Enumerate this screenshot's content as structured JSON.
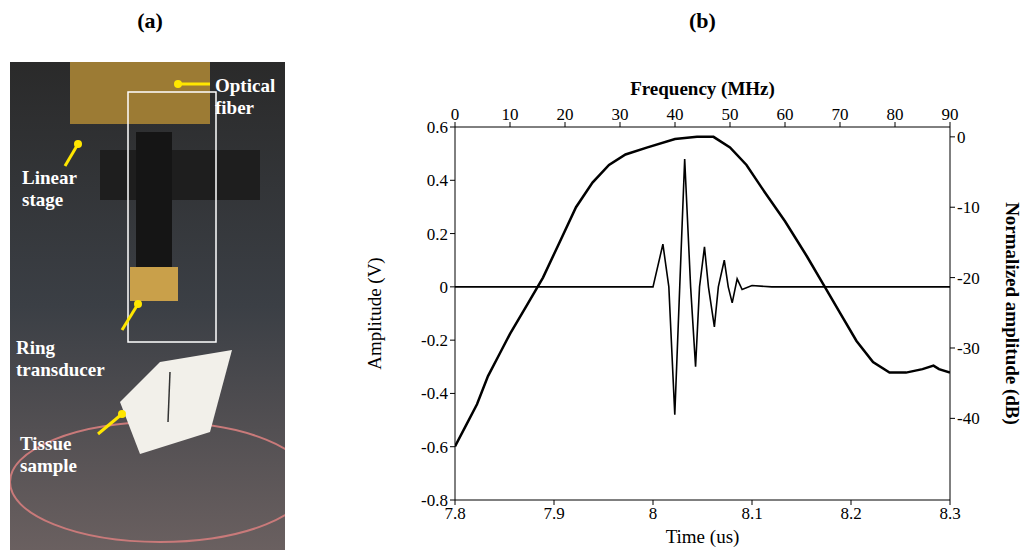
{
  "panel_a": {
    "label": "(a)",
    "annotations": [
      "Optical fiber",
      "Linear stage",
      "Ring transducer",
      "Tissue sample"
    ]
  },
  "chart_data": {
    "type": "line",
    "title": "(b)",
    "xlabel": "Time (us)",
    "ylabel": "Amplitude (V)",
    "x2label": "Frequency (MHz)",
    "y2label": "Normalized amplitude (dB)",
    "xlim": [
      7.8,
      8.3
    ],
    "xticks": [
      7.8,
      7.9,
      8,
      8.1,
      8.2,
      8.3
    ],
    "ylim": [
      -0.8,
      0.6
    ],
    "yticks": [
      -0.8,
      -0.6,
      -0.4,
      -0.2,
      0,
      0.2,
      0.4,
      0.6
    ],
    "x2lim": [
      0,
      90
    ],
    "x2ticks": [
      0,
      10,
      20,
      30,
      40,
      50,
      60,
      70,
      80,
      90
    ],
    "y2lim": [
      -51.6,
      1.4
    ],
    "y2ticks": [
      0,
      -10,
      -20,
      -30,
      -40
    ],
    "grid": false,
    "series": [
      {
        "color": "#000000",
        "x": [
          7.8,
          7.99,
          8.0,
          8.01,
          8.016,
          8.022,
          8.027,
          8.032,
          8.038,
          8.043,
          8.047,
          8.052,
          8.056,
          8.062,
          8.066,
          8.072,
          8.076,
          8.08,
          8.085,
          8.09,
          8.1,
          8.12,
          8.3
        ],
        "values": [
          0,
          0,
          0,
          0.16,
          0,
          -0.48,
          0,
          0.48,
          0,
          -0.3,
          0,
          0.15,
          0,
          -0.15,
          0,
          0.1,
          0,
          -0.06,
          0.03,
          -0.01,
          0.005,
          0,
          0
        ]
      },
      {
        "color": "#000000",
        "axis": "y2",
        "x": [
          0,
          2,
          4,
          6,
          8,
          10,
          13,
          16,
          19,
          22,
          25,
          28,
          31,
          35,
          40,
          44,
          47,
          50,
          53,
          56,
          60,
          64,
          67,
          70,
          73,
          76,
          79,
          82,
          85,
          87,
          88,
          90
        ],
        "values": [
          -44,
          -41,
          -38,
          -34,
          -31,
          -28,
          -24,
          -20,
          -15,
          -10,
          -6.5,
          -4,
          -2.5,
          -1.5,
          -0.3,
          0,
          0,
          -1.5,
          -4,
          -7.5,
          -12,
          -17,
          -21,
          -25,
          -29,
          -32,
          -33.5,
          -33.5,
          -33,
          -32.5,
          -33,
          -33.5
        ]
      }
    ]
  }
}
